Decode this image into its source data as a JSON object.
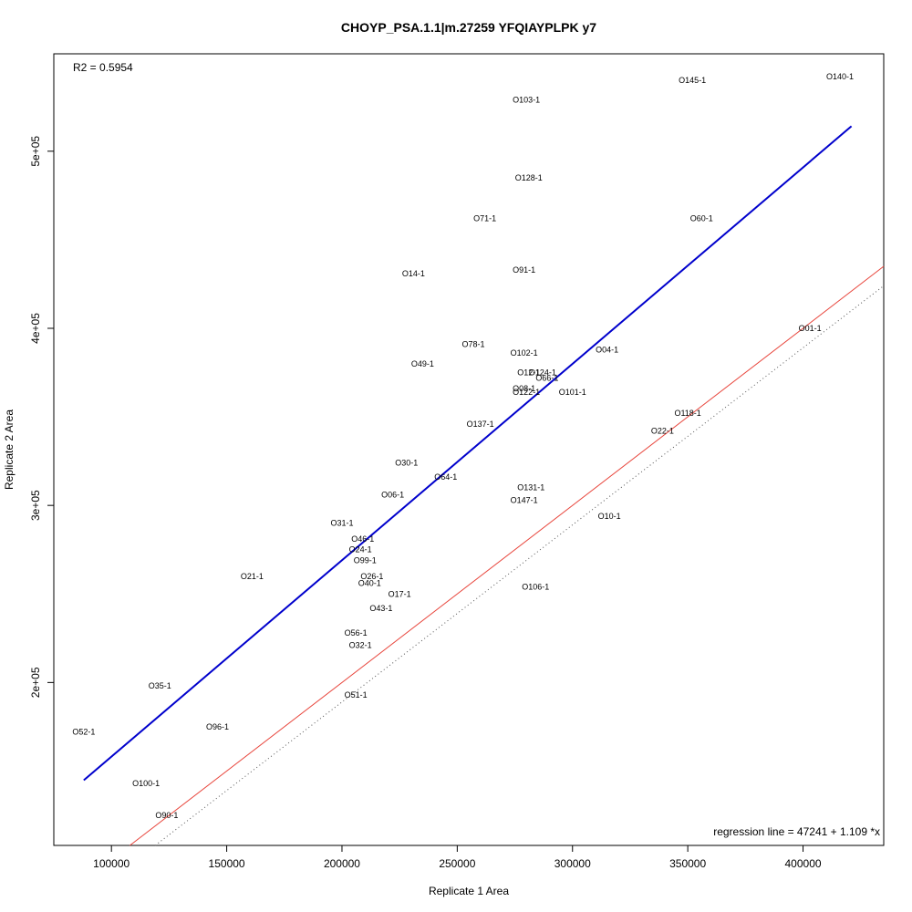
{
  "chart_data": {
    "type": "scatter",
    "title": "CHOYP_PSA.1.1|m.27259 YFQIAYPLPK y7",
    "xlabel": "Replicate 1 Area",
    "ylabel": "Replicate 2 Area",
    "xlim": [
      75000,
      435000
    ],
    "ylim": [
      108000,
      555000
    ],
    "xticks": [
      100000,
      150000,
      200000,
      250000,
      300000,
      350000,
      400000
    ],
    "xtick_labels": [
      "100000",
      "150000",
      "200000",
      "250000",
      "300000",
      "350000",
      "400000"
    ],
    "yticks": [
      200000,
      300000,
      400000,
      500000
    ],
    "ytick_labels": [
      "2e+05",
      "3e+05",
      "4e+05",
      "5e+05"
    ],
    "grid": false,
    "annotations": {
      "r2": "R2 = 0.5954",
      "regression": "regression line = 47241 + 1.109 *x"
    },
    "lines": [
      {
        "kind": "identity",
        "intercept": 0,
        "slope": 1,
        "color": "#e8453c",
        "style": "solid"
      },
      {
        "kind": "regression",
        "intercept": 47241,
        "slope": 1.109,
        "x_range": [
          88000,
          421000
        ],
        "color": "#0000cc",
        "style": "solid"
      },
      {
        "kind": "reference",
        "intercept": -11000,
        "slope": 1.0,
        "color": "#555555",
        "style": "dotted"
      }
    ],
    "points": [
      {
        "label": "O140-1",
        "x": 416000,
        "y": 542000
      },
      {
        "label": "O145-1",
        "x": 352000,
        "y": 540000
      },
      {
        "label": "O103-1",
        "x": 280000,
        "y": 529000
      },
      {
        "label": "O128-1",
        "x": 281000,
        "y": 485000
      },
      {
        "label": "O71-1",
        "x": 262000,
        "y": 462000
      },
      {
        "label": "O60-1",
        "x": 356000,
        "y": 462000
      },
      {
        "label": "O91-1",
        "x": 279000,
        "y": 433000
      },
      {
        "label": "O14-1",
        "x": 231000,
        "y": 431000
      },
      {
        "label": "O01-1",
        "x": 403000,
        "y": 400000
      },
      {
        "label": "O78-1",
        "x": 257000,
        "y": 391000
      },
      {
        "label": "O04-1",
        "x": 315000,
        "y": 388000
      },
      {
        "label": "O102-1",
        "x": 279000,
        "y": 386000
      },
      {
        "label": "O49-1",
        "x": 235000,
        "y": 380000
      },
      {
        "label": "O124-1",
        "x": 287000,
        "y": 375000
      },
      {
        "label": "O12-1",
        "x": 281000,
        "y": 375000
      },
      {
        "label": "O66-1",
        "x": 289000,
        "y": 372000
      },
      {
        "label": "O08-1",
        "x": 279000,
        "y": 366000
      },
      {
        "label": "O122-1",
        "x": 280000,
        "y": 364000
      },
      {
        "label": "O101-1",
        "x": 300000,
        "y": 364000
      },
      {
        "label": "O118-1",
        "x": 350000,
        "y": 352000
      },
      {
        "label": "O137-1",
        "x": 260000,
        "y": 346000
      },
      {
        "label": "O22-1",
        "x": 339000,
        "y": 342000
      },
      {
        "label": "O30-1",
        "x": 228000,
        "y": 324000
      },
      {
        "label": "O64-1",
        "x": 245000,
        "y": 316000
      },
      {
        "label": "O131-1",
        "x": 282000,
        "y": 310000
      },
      {
        "label": "O06-1",
        "x": 222000,
        "y": 306000
      },
      {
        "label": "O147-1",
        "x": 279000,
        "y": 303000
      },
      {
        "label": "O10-1",
        "x": 316000,
        "y": 294000
      },
      {
        "label": "O31-1",
        "x": 200000,
        "y": 290000
      },
      {
        "label": "O46-1",
        "x": 209000,
        "y": 281000
      },
      {
        "label": "O24-1",
        "x": 208000,
        "y": 275000
      },
      {
        "label": "O99-1",
        "x": 210000,
        "y": 269000
      },
      {
        "label": "O21-1",
        "x": 161000,
        "y": 260000
      },
      {
        "label": "O26-1",
        "x": 213000,
        "y": 260000
      },
      {
        "label": "O40-1",
        "x": 212000,
        "y": 256000
      },
      {
        "label": "O106-1",
        "x": 284000,
        "y": 254000
      },
      {
        "label": "O17-1",
        "x": 225000,
        "y": 250000
      },
      {
        "label": "O43-1",
        "x": 217000,
        "y": 242000
      },
      {
        "label": "O56-1",
        "x": 206000,
        "y": 228000
      },
      {
        "label": "O32-1",
        "x": 208000,
        "y": 221000
      },
      {
        "label": "O35-1",
        "x": 121000,
        "y": 198000
      },
      {
        "label": "O51-1",
        "x": 206000,
        "y": 193000
      },
      {
        "label": "O96-1",
        "x": 146000,
        "y": 175000
      },
      {
        "label": "O52-1",
        "x": 88000,
        "y": 172000
      },
      {
        "label": "O100-1",
        "x": 115000,
        "y": 143000
      },
      {
        "label": "O90-1",
        "x": 124000,
        "y": 125000
      }
    ]
  }
}
